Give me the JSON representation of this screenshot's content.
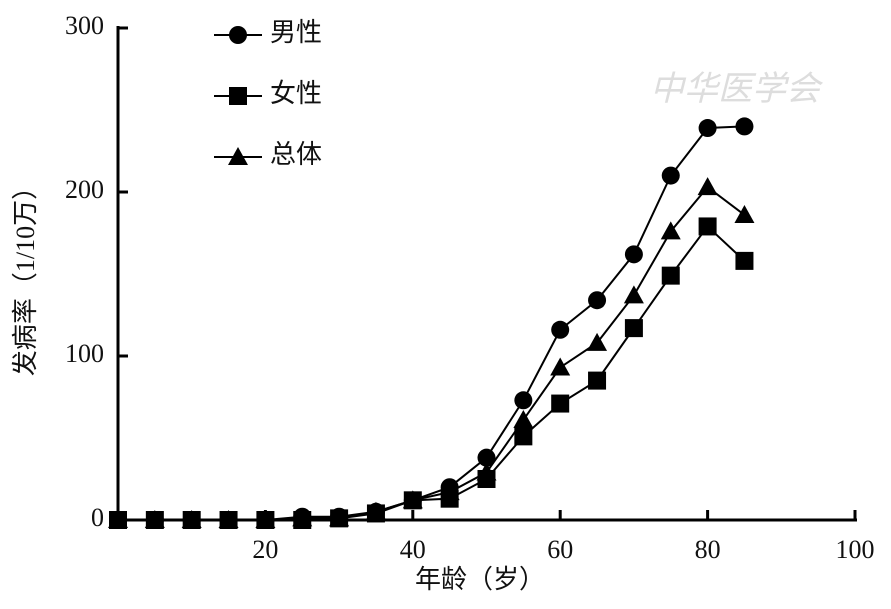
{
  "chart_data": {
    "type": "line",
    "xlabel": "年龄（岁）",
    "ylabel": "发病率（1/10万）",
    "watermark": "中华医学会",
    "x": [
      0,
      5,
      10,
      15,
      20,
      25,
      30,
      35,
      40,
      45,
      50,
      55,
      60,
      65,
      70,
      75,
      80,
      85
    ],
    "series": [
      {
        "name": "男性",
        "color": "#000000",
        "marker": "circle",
        "values": [
          0,
          0,
          0,
          0,
          0,
          2,
          2,
          5,
          12,
          20,
          38,
          73,
          116,
          134,
          162,
          210,
          239,
          240
        ]
      },
      {
        "name": "女性",
        "color": "#000000",
        "marker": "square",
        "values": [
          0,
          0,
          0,
          0,
          0,
          0,
          1,
          4,
          12,
          13,
          25,
          51,
          71,
          85,
          117,
          149,
          179,
          158
        ]
      },
      {
        "name": "总体",
        "color": "#000000",
        "marker": "triangle",
        "values": [
          0,
          0,
          0,
          0,
          0,
          1,
          1,
          5,
          12,
          17,
          29,
          61,
          93,
          108,
          137,
          176,
          203,
          186
        ]
      }
    ],
    "xlim": [
      0,
      100
    ],
    "xticks": [
      20,
      40,
      60,
      80,
      100
    ],
    "ylim": [
      0,
      300
    ],
    "yticks": [
      0,
      100,
      200,
      300
    ],
    "legend": "upper left",
    "grid": false
  }
}
